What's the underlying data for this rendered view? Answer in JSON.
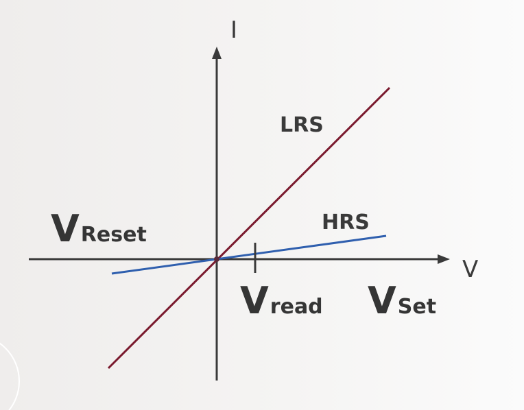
{
  "diagram": {
    "axes": {
      "x_label": "V",
      "y_label": "I"
    },
    "curves": [
      {
        "name": "LRS",
        "color": "#7a1a2e"
      },
      {
        "name": "HRS",
        "color": "#2f5fae"
      }
    ],
    "voltage_labels": {
      "reset": {
        "main": "V",
        "sub": "Reset"
      },
      "read": {
        "main": "V",
        "sub": "read"
      },
      "set": {
        "main": "V",
        "sub": "Set"
      }
    }
  }
}
